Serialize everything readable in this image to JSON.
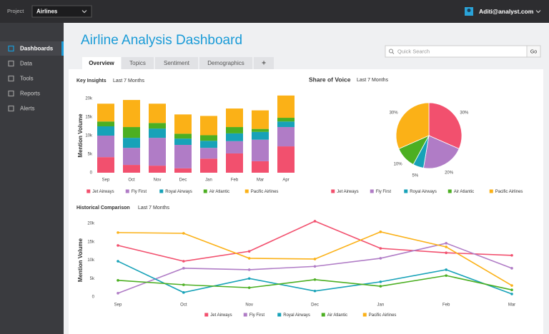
{
  "top_bar": {
    "project_label": "Project",
    "project_value": "Airlines",
    "user_email": "Aditi@analyst.com"
  },
  "sidebar": {
    "items": [
      "Dashboards",
      "Data",
      "Tools",
      "Reports",
      "Alerts"
    ]
  },
  "header": {
    "title": "Airline Analysis Dashboard",
    "search_placeholder": "Quick Search",
    "go_button": "Go"
  },
  "tabs": [
    "Overview",
    "Topics",
    "Sentiment",
    "Demographics",
    "+"
  ],
  "chart_data": [
    {
      "type": "bar",
      "stacked": true,
      "title": "Key Insights",
      "subtitle": "Last 7 Months",
      "y_label": "Mention Volume",
      "categories": [
        "Sep",
        "Oct",
        "Nov",
        "Dec",
        "Jan",
        "Feb",
        "Mar",
        "Apr"
      ],
      "series": [
        {
          "name": "Jet Airways",
          "color": "#f2506e",
          "values": [
            4200,
            2100,
            1900,
            1200,
            3800,
            5200,
            3100,
            7100
          ]
        },
        {
          "name": "Fly First",
          "color": "#b07cc6",
          "values": [
            5800,
            4600,
            7500,
            6300,
            2900,
            3300,
            5800,
            5200
          ]
        },
        {
          "name": "Royal Airways",
          "color": "#17a2b8",
          "values": [
            2500,
            2700,
            2500,
            1700,
            1900,
            2100,
            2100,
            1500
          ]
        },
        {
          "name": "Air Atlantic",
          "color": "#4caf22",
          "values": [
            1300,
            2900,
            1500,
            1300,
            1500,
            1700,
            800,
            1000
          ]
        },
        {
          "name": "Pacific Airlines",
          "color": "#fbb117",
          "values": [
            4800,
            7300,
            5200,
            5200,
            5200,
            5000,
            5000,
            6000
          ]
        }
      ],
      "ylim": [
        0,
        21000
      ],
      "yticks": [
        0,
        {
          "value": 5000,
          "label": "5k"
        },
        {
          "value": 10000,
          "label": "10k"
        },
        {
          "value": 15000,
          "label": "15k"
        },
        {
          "value": 20000,
          "label": "20k"
        }
      ]
    },
    {
      "type": "pie",
      "title": "Share of Voice",
      "subtitle": "Last 7 Months",
      "categories": [
        "Jet Airways",
        "Fly First",
        "Royal Airways",
        "Air Atlantic",
        "Pacific Airlines"
      ],
      "values": [
        30,
        20,
        5,
        10,
        30
      ],
      "value_labels": [
        "30%",
        "20%",
        "5%",
        "10%",
        "30%"
      ],
      "colors": [
        "#f2506e",
        "#b07cc6",
        "#17a2b8",
        "#4caf22",
        "#fbb117"
      ]
    },
    {
      "type": "line",
      "title": "Historical Comparison",
      "subtitle": "Last 7 Months",
      "y_label": "Mention Volume",
      "categories": [
        "Sep",
        "Oct",
        "Nov",
        "Dec",
        "Jan",
        "Feb",
        "Mar"
      ],
      "series": [
        {
          "name": "Jet Airways",
          "color": "#f2506e",
          "values": [
            14000,
            9700,
            12400,
            20600,
            13200,
            12000,
            11300
          ]
        },
        {
          "name": "Fly First",
          "color": "#b07cc6",
          "values": [
            1000,
            7800,
            7400,
            8300,
            10500,
            14600,
            7800
          ]
        },
        {
          "name": "Royal Airways",
          "color": "#17a2b8",
          "values": [
            9700,
            1200,
            5000,
            1600,
            4100,
            7400,
            800
          ]
        },
        {
          "name": "Air Atlantic",
          "color": "#4caf22",
          "values": [
            4500,
            3300,
            2500,
            4700,
            2900,
            5800,
            1900
          ]
        },
        {
          "name": "Pacific Airlines",
          "color": "#fbb117",
          "values": [
            17500,
            17300,
            10500,
            10300,
            17700,
            13600,
            3100
          ]
        }
      ],
      "ylim": [
        0,
        20000
      ],
      "yticks": [
        0,
        {
          "value": 5000,
          "label": "5k"
        },
        {
          "value": 10000,
          "label": "10k"
        },
        {
          "value": 15000,
          "label": "15k"
        },
        {
          "value": 20000,
          "label": "20k"
        }
      ]
    }
  ]
}
